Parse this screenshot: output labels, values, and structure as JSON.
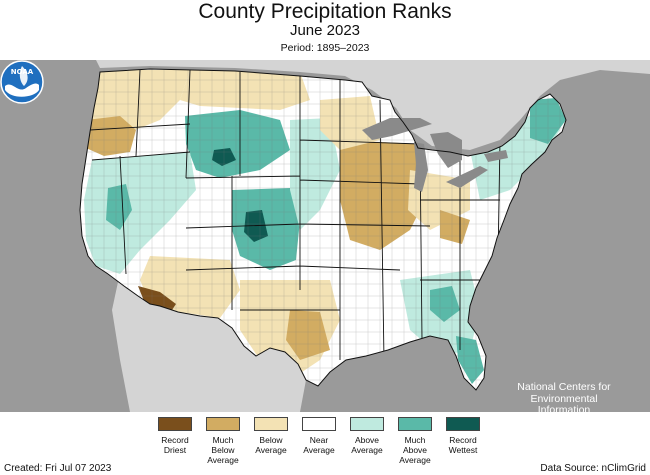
{
  "header": {
    "title": "County Precipitation Ranks",
    "subtitle": "June 2023",
    "period": "Period: 1895–2023"
  },
  "map": {
    "ocean_color": "#9a9a9a",
    "land_color": "#ffffff",
    "lakes_color": "#8a8a8a",
    "logo_icon": "noaa-logo-icon",
    "agency_text": "National Centers for\nEnvironmental\nInformation"
  },
  "legend": {
    "items": [
      {
        "label": "Record\nDriest",
        "color": "#7a4f1c"
      },
      {
        "label": "Much\nBelow\nAverage",
        "color": "#d2ac62"
      },
      {
        "label": "Below\nAverage",
        "color": "#f3e2b4"
      },
      {
        "label": "Near\nAverage",
        "color": "#ffffff"
      },
      {
        "label": "Above\nAverage",
        "color": "#bfeadf"
      },
      {
        "label": "Much\nAbove\nAverage",
        "color": "#5ab9a8"
      },
      {
        "label": "Record\nWettest",
        "color": "#0f5a52"
      }
    ]
  },
  "footer": {
    "created": "Created: Fri Jul 07 2023",
    "source": "Data Source: nClimGrid"
  }
}
